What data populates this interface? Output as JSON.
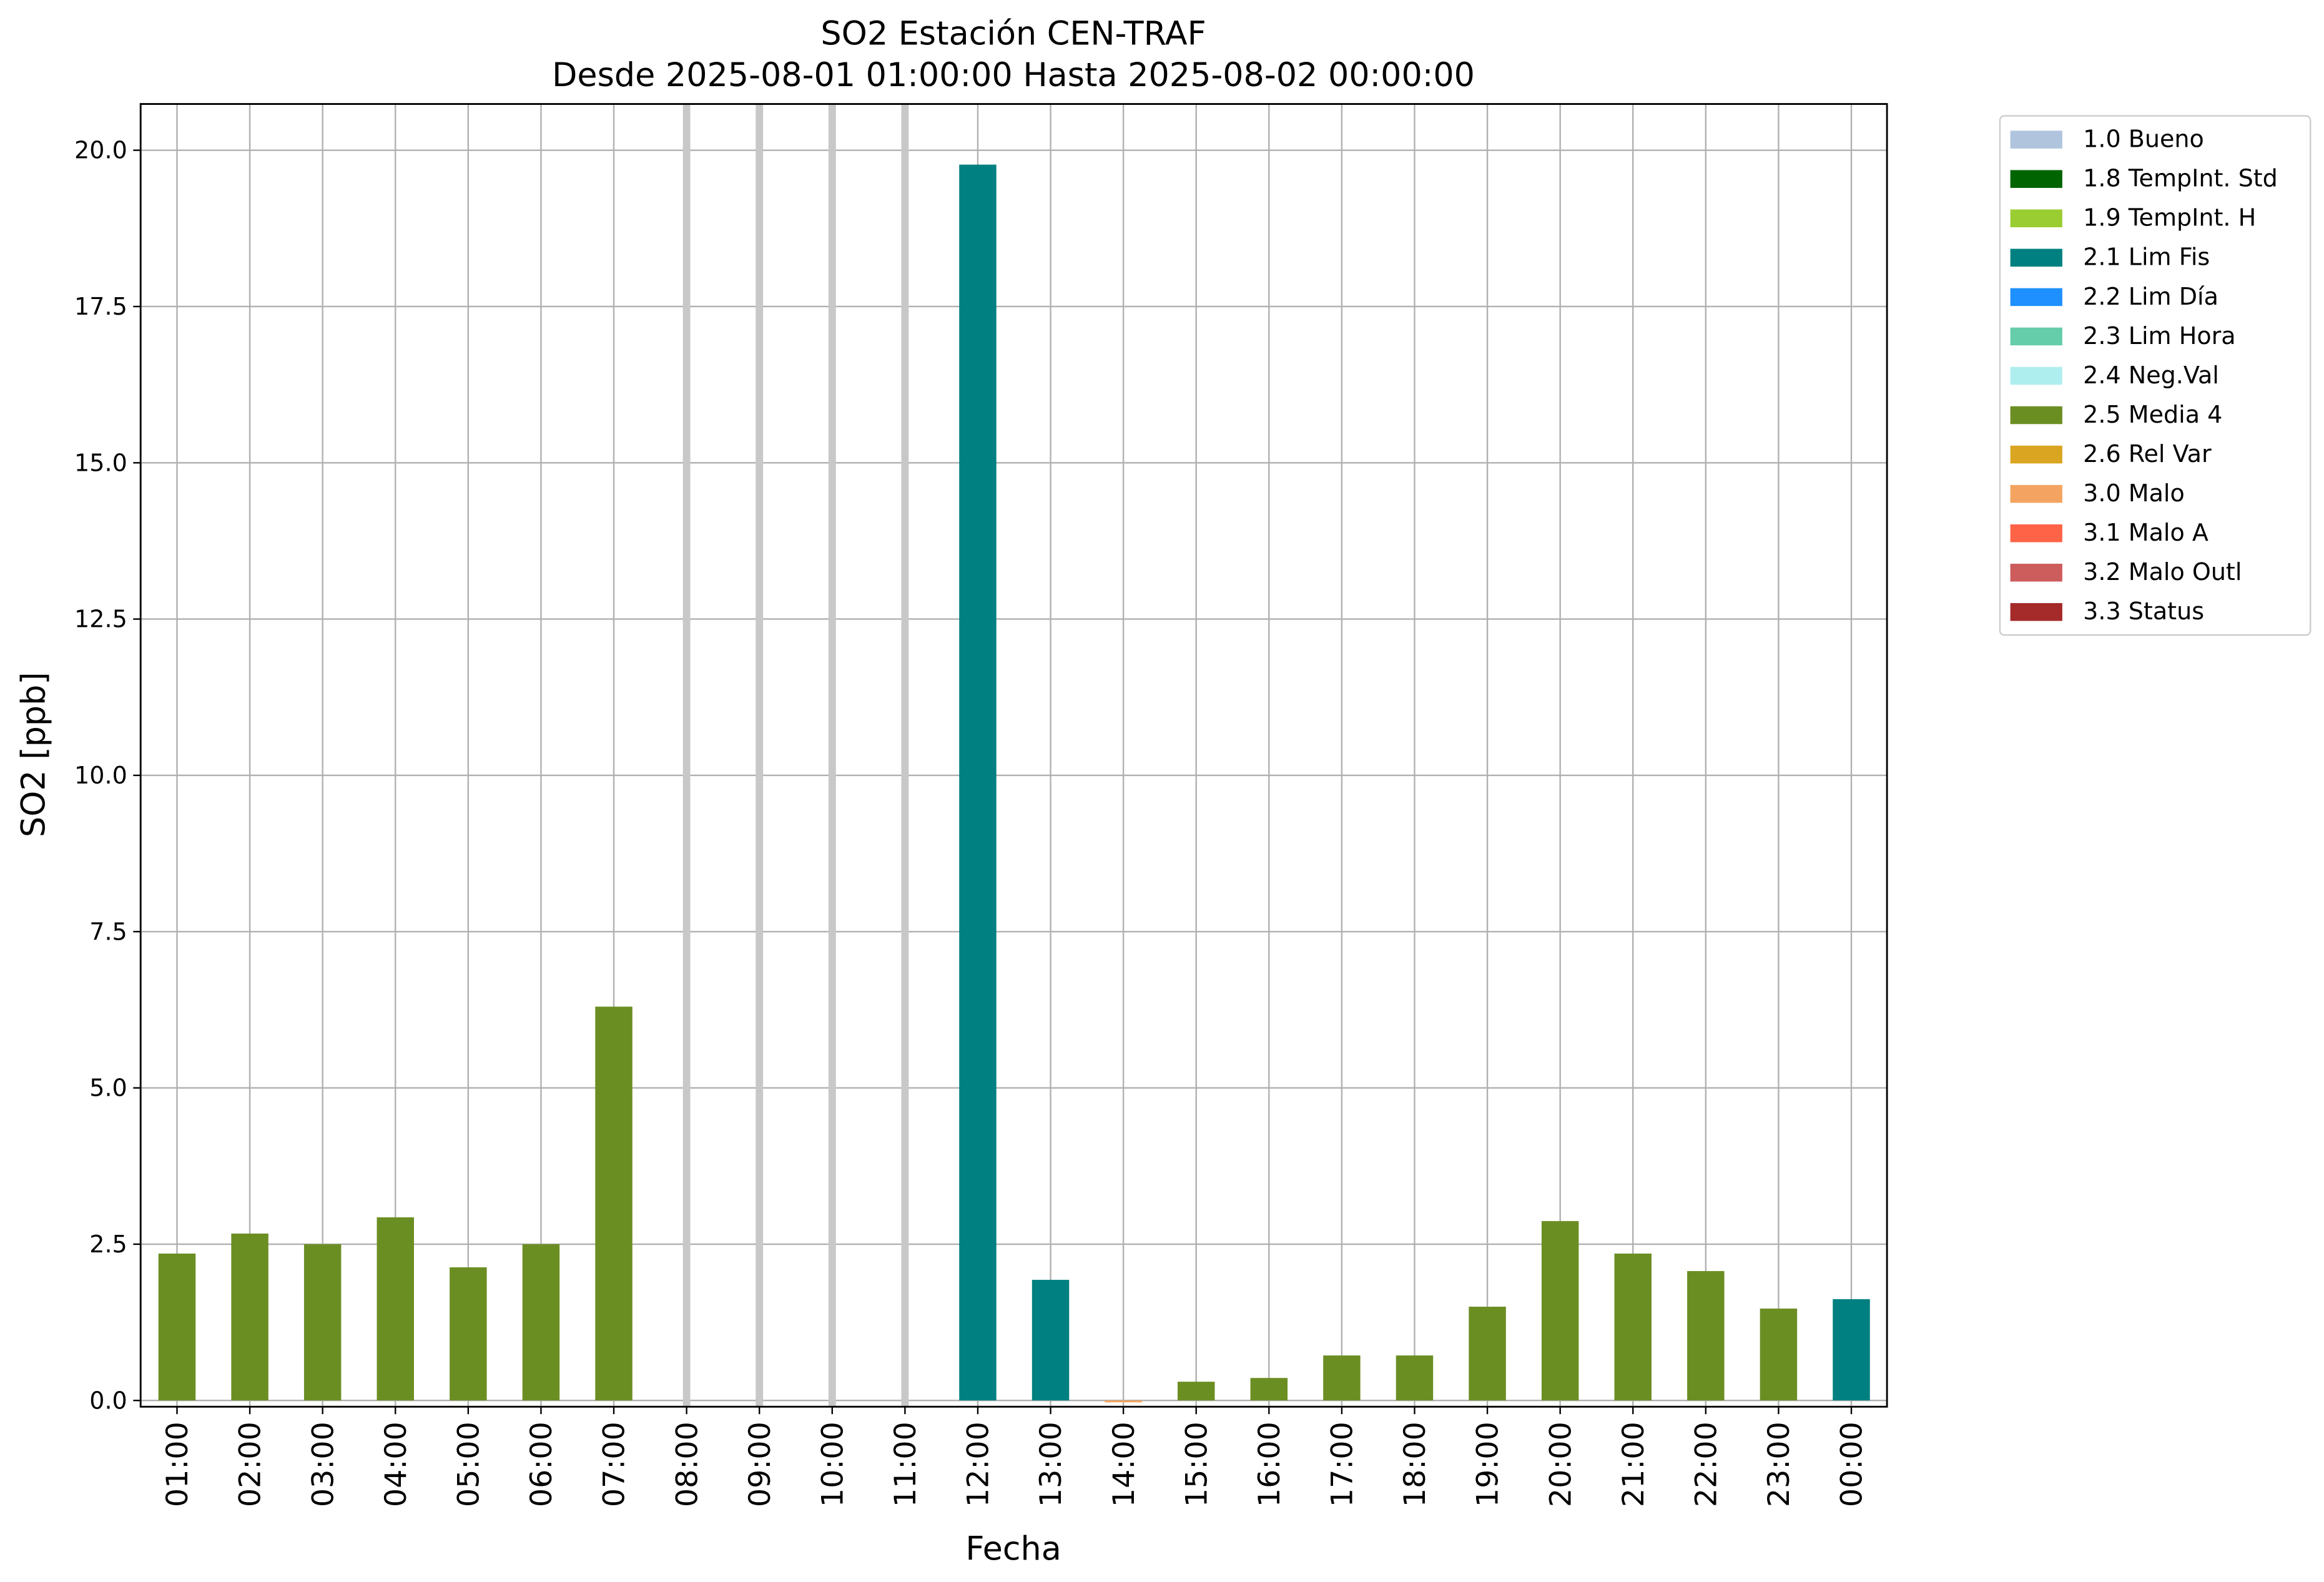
{
  "chart_data": {
    "type": "bar",
    "title": "SO2 Estación CEN-TRAF",
    "subtitle": "Desde 2025-08-01 01:00:00 Hasta 2025-08-02 00:00:00",
    "x_label": "Fecha",
    "y_label": "SO2 [ppb]",
    "categories": [
      "01:00",
      "02:00",
      "03:00",
      "04:00",
      "05:00",
      "06:00",
      "07:00",
      "08:00",
      "09:00",
      "10:00",
      "11:00",
      "12:00",
      "13:00",
      "14:00",
      "15:00",
      "16:00",
      "17:00",
      "18:00",
      "19:00",
      "20:00",
      "21:00",
      "22:00",
      "23:00",
      "00:00"
    ],
    "values": [
      2.35,
      2.67,
      2.5,
      2.93,
      2.13,
      2.5,
      6.3,
      null,
      null,
      null,
      null,
      19.77,
      1.93,
      -0.03,
      0.3,
      0.36,
      0.72,
      0.72,
      1.5,
      2.87,
      2.35,
      2.07,
      1.47,
      1.62
    ],
    "bar_colors": [
      "#6b8e23",
      "#6b8e23",
      "#6b8e23",
      "#6b8e23",
      "#6b8e23",
      "#6b8e23",
      "#6b8e23",
      null,
      null,
      null,
      null,
      "#008080",
      "#008080",
      "#f4a460",
      "#6b8e23",
      "#6b8e23",
      "#6b8e23",
      "#6b8e23",
      "#6b8e23",
      "#6b8e23",
      "#6b8e23",
      "#6b8e23",
      "#6b8e23",
      "#008080"
    ],
    "missing_color": "#c8c8c8",
    "ylim": [
      -0.1,
      20.74
    ],
    "yticks": [
      {
        "value": 0,
        "label": "0.0"
      },
      2.5,
      {
        "value": 5,
        "label": "5.0"
      },
      7.5,
      {
        "value": 10,
        "label": "10.0"
      },
      12.5,
      {
        "value": 15,
        "label": "15.0"
      },
      17.5,
      {
        "value": 20,
        "label": "20.0"
      }
    ],
    "grid": true,
    "legend_position": "outside-right-top",
    "legend": [
      {
        "name": "1.0 Bueno",
        "color": "#b0c4de"
      },
      {
        "name": "1.8 TempInt. Std",
        "color": "#006400"
      },
      {
        "name": "1.9 TempInt. H",
        "color": "#9acd32"
      },
      {
        "name": "2.1 Lim Fis",
        "color": "#008080"
      },
      {
        "name": "2.2 Lim Día",
        "color": "#1e90ff"
      },
      {
        "name": "2.3 Lim Hora",
        "color": "#66cdaa"
      },
      {
        "name": "2.4 Neg.Val",
        "color": "#afeeee"
      },
      {
        "name": "2.5 Media 4",
        "color": "#6b8e23"
      },
      {
        "name": "2.6 Rel Var",
        "color": "#daa520"
      },
      {
        "name": "3.0 Malo",
        "color": "#f4a460"
      },
      {
        "name": "3.1 Malo A",
        "color": "#ff6347"
      },
      {
        "name": "3.2 Malo Outl",
        "color": "#cd5c5c"
      },
      {
        "name": "3.3 Status",
        "color": "#a52a2a"
      }
    ]
  }
}
